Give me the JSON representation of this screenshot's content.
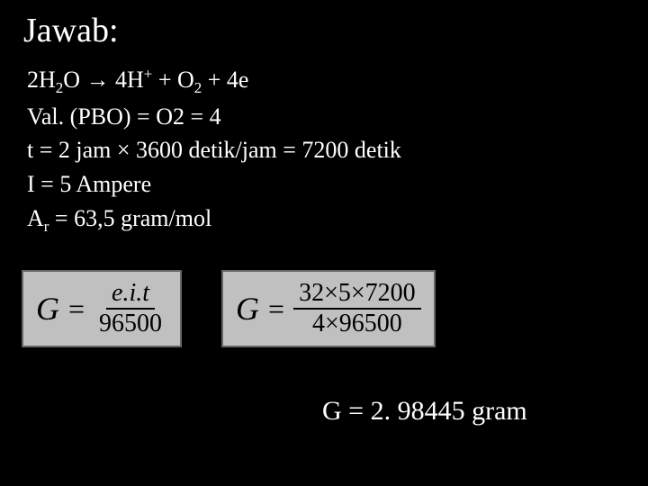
{
  "title": "Jawab:",
  "lines": {
    "l1a": "2H",
    "l1b": "2",
    "l1c": "O → 4H",
    "l1d": "+",
    "l1e": " + O",
    "l1f": "2",
    "l1g": " + 4e",
    "l2": "Val. (PBO) = O2 = 4",
    "l3": "t = 2 jam × 3600 detik/jam = 7200 detik",
    "l4": "I = 5 Ampere",
    "l5a": "A",
    "l5b": "r",
    "l5c": " = 63,5 gram/mol"
  },
  "formula1": {
    "lhs": "G",
    "eq": "=",
    "num": "e.i.t",
    "den": "96500"
  },
  "formula2": {
    "lhs": "G",
    "eq": "=",
    "num": "32×5×7200",
    "den": "4×96500"
  },
  "result": "G = 2. 98445 gram",
  "colors": {
    "background": "#000000",
    "text": "#ffffff",
    "formula_bg": "#c0c0c0",
    "formula_border": "#666666",
    "formula_text": "#000000"
  },
  "typography": {
    "title_fontsize": 38,
    "body_fontsize": 26,
    "formula_lhs_fontsize": 36,
    "formula_frac_fontsize": 28,
    "result_fontsize": 30,
    "font_family": "Georgia, Times New Roman, serif"
  }
}
